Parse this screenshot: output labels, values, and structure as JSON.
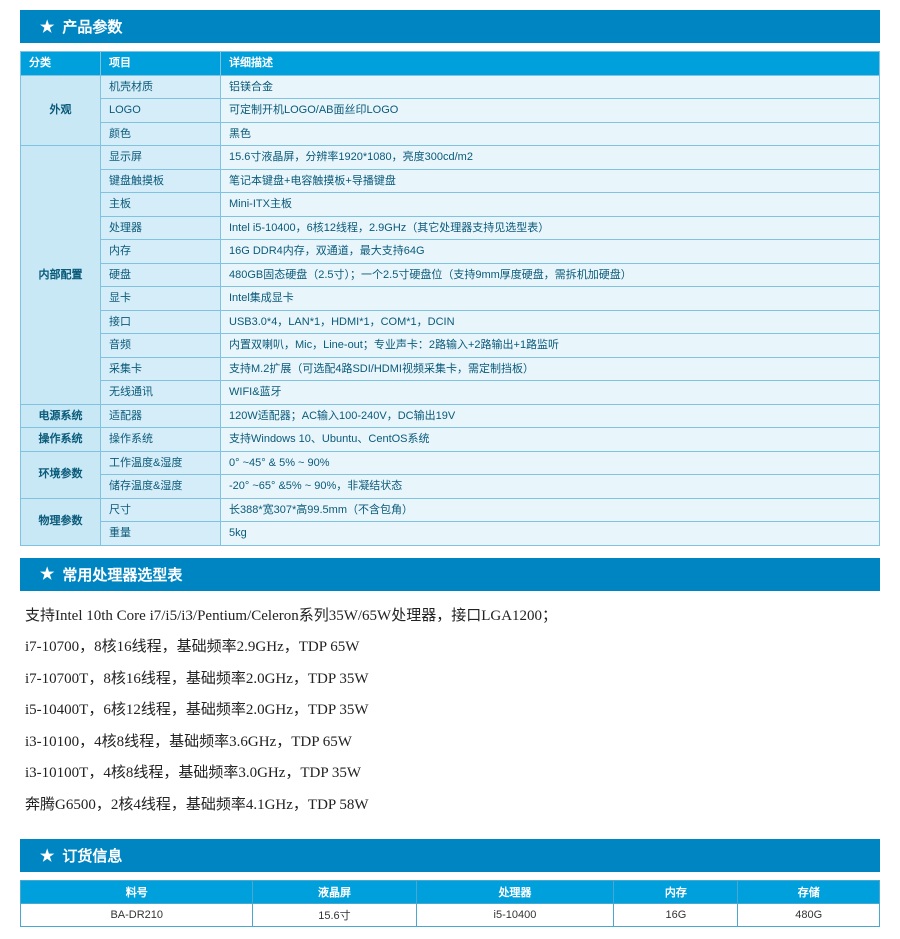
{
  "colors": {
    "header_bg": "#0085c3",
    "header_text": "#ffffff",
    "table_header_bg": "#00a0dc",
    "cat_bg": "#c8e8f5",
    "item_bg": "#d5edf8",
    "desc_bg": "#e8f5fb",
    "border": "#7fc3e0",
    "text_blue": "#0a5a7a",
    "body_bg": "#ffffff"
  },
  "sections": {
    "spec_title": "产品参数",
    "proc_title": "常用处理器选型表",
    "order_title": "订货信息"
  },
  "spec_table": {
    "headers": {
      "cat": "分类",
      "item": "项目",
      "desc": "详细描述"
    },
    "groups": [
      {
        "cat": "外观",
        "rows": [
          {
            "item": "机壳材质",
            "desc": "铝镁合金"
          },
          {
            "item": "LOGO",
            "desc": "可定制开机LOGO/AB面丝印LOGO"
          },
          {
            "item": "颜色",
            "desc": "黑色"
          }
        ]
      },
      {
        "cat": "内部配置",
        "rows": [
          {
            "item": "显示屏",
            "desc": "15.6寸液晶屏，分辨率1920*1080，亮度300cd/m2"
          },
          {
            "item": "键盘触摸板",
            "desc": "笔记本键盘+电容触摸板+导播键盘"
          },
          {
            "item": "主板",
            "desc": "Mini-ITX主板"
          },
          {
            "item": "处理器",
            "desc": "Intel i5-10400，6核12线程，2.9GHz（其它处理器支持见选型表）"
          },
          {
            "item": "内存",
            "desc": "16G DDR4内存，双通道，最大支持64G"
          },
          {
            "item": "硬盘",
            "desc": "480GB固态硬盘（2.5寸）；一个2.5寸硬盘位（支持9mm厚度硬盘，需拆机加硬盘）"
          },
          {
            "item": "显卡",
            "desc": "Intel集成显卡"
          },
          {
            "item": "接口",
            "desc": "USB3.0*4，LAN*1，HDMI*1，COM*1，DCIN"
          },
          {
            "item": "音频",
            "desc": "内置双喇叭，Mic，Line-out；专业声卡：2路输入+2路输出+1路监听"
          },
          {
            "item": "采集卡",
            "desc": "支持M.2扩展（可选配4路SDI/HDMI视频采集卡，需定制挡板）"
          },
          {
            "item": "无线通讯",
            "desc": "WIFI&蓝牙"
          }
        ]
      },
      {
        "cat": "电源系统",
        "rows": [
          {
            "item": "适配器",
            "desc": "120W适配器；AC输入100-240V，DC输出19V"
          }
        ]
      },
      {
        "cat": "操作系统",
        "rows": [
          {
            "item": "操作系统",
            "desc": "支持Windows 10、Ubuntu、CentOS系统"
          }
        ]
      },
      {
        "cat": "环境参数",
        "rows": [
          {
            "item": "工作温度&湿度",
            "desc": "0° ~45° & 5% ~ 90%"
          },
          {
            "item": "储存温度&湿度",
            "desc": "-20° ~65° &5% ~ 90%，非凝结状态"
          }
        ]
      },
      {
        "cat": "物理参数",
        "rows": [
          {
            "item": "尺寸",
            "desc": "长388*宽307*高99.5mm（不含包角）"
          },
          {
            "item": "重量",
            "desc": "5kg"
          }
        ]
      }
    ]
  },
  "proc_list": [
    "支持Intel 10th Core i7/i5/i3/Pentium/Celeron系列35W/65W处理器，接口LGA1200；",
    "i7-10700，8核16线程，基础频率2.9GHz，TDP 65W",
    "i7-10700T，8核16线程，基础频率2.0GHz，TDP 35W",
    "i5-10400T，6核12线程，基础频率2.0GHz，TDP 35W",
    "i3-10100，4核8线程，基础频率3.6GHz，TDP 65W",
    "i3-10100T，4核8线程，基础频率3.0GHz，TDP 35W",
    "奔腾G6500，2核4线程，基础频率4.1GHz，TDP 58W"
  ],
  "order_table": {
    "headers": [
      "料号",
      "液晶屏",
      "处理器",
      "内存",
      "存储"
    ],
    "rows": [
      [
        "BA-DR210",
        "15.6寸",
        "i5-10400",
        "16G",
        "480G"
      ]
    ]
  }
}
